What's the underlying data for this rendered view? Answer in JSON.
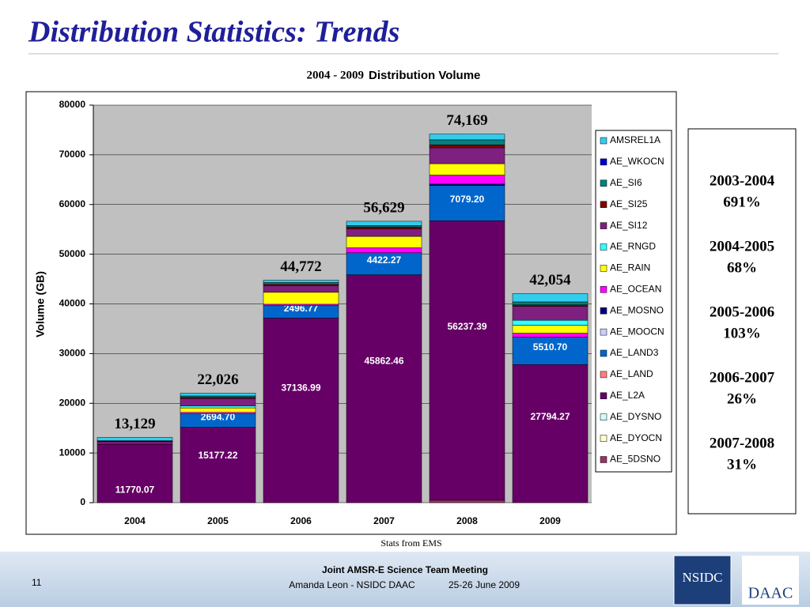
{
  "slide_title": "Distribution Statistics: Trends",
  "chart_data": {
    "type": "bar",
    "stacked": true,
    "title": [
      "2004 - 2009",
      "Distribution Volume"
    ],
    "ylabel": "Volume (GB)",
    "categories": [
      "2004",
      "2005",
      "2006",
      "2007",
      "2008",
      "2009"
    ],
    "ylim": [
      0,
      80000
    ],
    "yticks": [
      0,
      10000,
      20000,
      30000,
      40000,
      50000,
      60000,
      70000,
      80000
    ],
    "grid": true,
    "series": [
      {
        "name": "AE_5DSNO",
        "color": "#993366",
        "values": [
          0,
          0,
          0,
          0,
          500,
          0
        ]
      },
      {
        "name": "AE_DYOCN",
        "color": "#ffffcc",
        "values": [
          0,
          0,
          0,
          0,
          0,
          0
        ]
      },
      {
        "name": "AE_DYSNO",
        "color": "#ccffff",
        "values": [
          0,
          0,
          0,
          0,
          0,
          0
        ]
      },
      {
        "name": "AE_L2A",
        "color": "#660066",
        "values": [
          11770.07,
          15177.22,
          37136.99,
          45862.46,
          56237.39,
          27794.27
        ],
        "value_labels": [
          "11770.07",
          "15177.22",
          "37136.99",
          "45862.46",
          "56237.39",
          "27794.27"
        ]
      },
      {
        "name": "AE_LAND",
        "color": "#ff8080",
        "values": [
          0,
          0,
          0,
          0,
          0,
          0
        ]
      },
      {
        "name": "AE_LAND3",
        "color": "#0066cc",
        "values": [
          0,
          2694.7,
          2496.77,
          4422.27,
          7079.2,
          5510.7
        ],
        "value_labels": [
          null,
          "2694.70",
          "2496.77",
          "4422.27",
          "7079.20",
          "5510.70"
        ]
      },
      {
        "name": "AE_MOOCN",
        "color": "#ccccff",
        "values": [
          0,
          0,
          0,
          0,
          0,
          0
        ]
      },
      {
        "name": "AE_MOSNO",
        "color": "#000080",
        "values": [
          0,
          0,
          0,
          0,
          300,
          0
        ]
      },
      {
        "name": "AE_OCEAN",
        "color": "#ff00ff",
        "values": [
          0,
          300,
          300,
          1000,
          1800,
          800
        ]
      },
      {
        "name": "AE_RAIN",
        "color": "#ffff00",
        "values": [
          0,
          900,
          2400,
          2300,
          2300,
          1600
        ]
      },
      {
        "name": "AE_RNGD",
        "color": "#33ffff",
        "values": [
          0,
          400,
          0,
          0,
          0,
          1000
        ]
      },
      {
        "name": "AE_SI12",
        "color": "#7f1f7f",
        "values": [
          500,
          1500,
          1300,
          1500,
          3200,
          2800
        ]
      },
      {
        "name": "AE_SI25",
        "color": "#800000",
        "values": [
          100,
          200,
          300,
          400,
          600,
          300
        ]
      },
      {
        "name": "AE_SI6",
        "color": "#008080",
        "values": [
          100,
          300,
          400,
          300,
          1000,
          600
        ]
      },
      {
        "name": "AE_WKOCN",
        "color": "#0000cc",
        "values": [
          0,
          0,
          0,
          0,
          0,
          0
        ]
      },
      {
        "name": "AMSREL1A",
        "color": "#33ccee",
        "values": [
          659,
          554.08,
          438.24,
          844.27,
          1152.41,
          1649.03
        ]
      }
    ],
    "totals": [
      {
        "value": 13129,
        "label": "13,129"
      },
      {
        "value": 22026,
        "label": "22,026"
      },
      {
        "value": 44772,
        "label": "44,772"
      },
      {
        "value": 56629,
        "label": "56,629"
      },
      {
        "value": 74169,
        "label": "74,169"
      },
      {
        "value": 42054,
        "label": "42,054"
      }
    ],
    "source": "Stats from EMS"
  },
  "growth": [
    {
      "period": "2003-2004",
      "change": "691%"
    },
    {
      "period": "2004-2005",
      "change": "68%"
    },
    {
      "period": "2005-2006",
      "change": "103%"
    },
    {
      "period": "2006-2007",
      "change": "26%"
    },
    {
      "period": "2007-2008",
      "change": "31%"
    }
  ],
  "footer": {
    "page": "11",
    "meeting": "Joint AMSR-E Science Team Meeting",
    "presenter": "Amanda Leon - NSIDC DAAC",
    "date": "25-26 June 2009",
    "logo1": "NSIDC",
    "logo2": "DAAC"
  }
}
